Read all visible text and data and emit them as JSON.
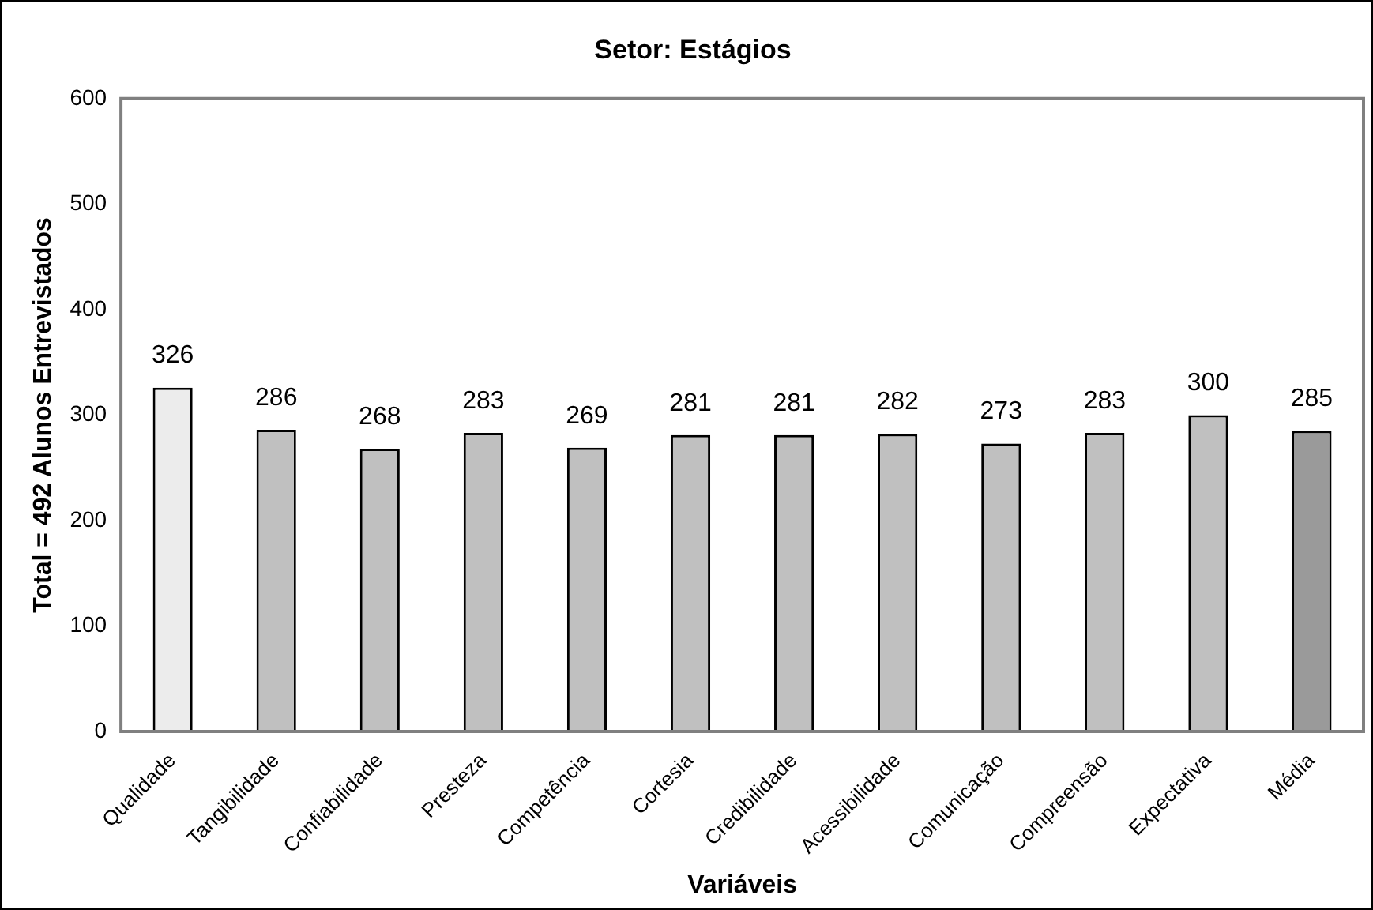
{
  "chart_data": {
    "type": "bar",
    "title": "Setor: Estágios",
    "xlabel": "Variáveis",
    "ylabel": "Total = 492 Alunos Entrevistados",
    "categories": [
      "Qualidade",
      "Tangibilidade",
      "Confiabilidade",
      "Presteza",
      "Competência",
      "Cortesia",
      "Credibilidade",
      "Acessibilidade",
      "Comunicação",
      "Compreensão",
      "Expectativa",
      "Média"
    ],
    "values": [
      326,
      286,
      268,
      283,
      269,
      281,
      281,
      282,
      273,
      283,
      300,
      285
    ],
    "colors": [
      "#ececec",
      "#c0c0c0",
      "#c0c0c0",
      "#c0c0c0",
      "#c0c0c0",
      "#c0c0c0",
      "#c0c0c0",
      "#c0c0c0",
      "#c0c0c0",
      "#c0c0c0",
      "#c0c0c0",
      "#9a9a9a"
    ],
    "ylim": [
      0,
      600
    ],
    "yticks": [
      0,
      100,
      200,
      300,
      400,
      500,
      600
    ],
    "grid": false,
    "legend": false,
    "data_labels": true
  }
}
